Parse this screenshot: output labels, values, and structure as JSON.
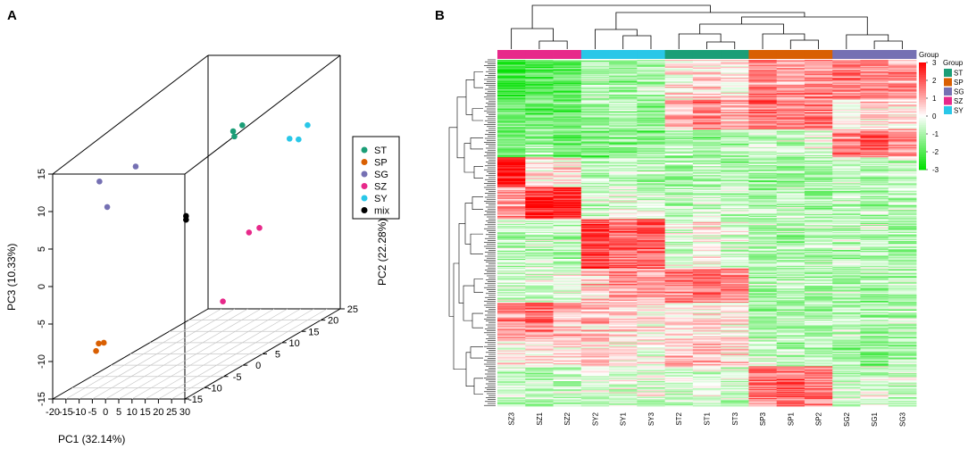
{
  "panel_labels": {
    "a": "A",
    "b": "B"
  },
  "colors": {
    "ST": "#1b9e77",
    "SP": "#d95f02",
    "SG": "#7570b3",
    "SZ": "#e7298a",
    "SY": "#29c7e8",
    "mix": "#000000",
    "heat_low": "#00e000",
    "heat_mid": "#ffffff",
    "heat_high": "#ff0000"
  },
  "chart_data": [
    {
      "type": "scatter",
      "subtype": "3d-pca",
      "xlabel": "PC1 (32.14%)",
      "ylabel": "PC2 (22.28%)",
      "zlabel": "PC3 (10.33%)",
      "x_ticks": [
        "-20",
        "-15",
        "-10",
        "-5",
        "0",
        "5",
        "10",
        "15",
        "20",
        "25",
        "30"
      ],
      "y_ticks": [
        "-15",
        "-10",
        "-5",
        "0",
        "5",
        "10",
        "15",
        "20",
        "25"
      ],
      "z_ticks": [
        "-15",
        "-10",
        "-5",
        "0",
        "5",
        "10",
        "15"
      ],
      "xlim": [
        -20,
        30
      ],
      "ylim": [
        -15,
        25
      ],
      "zlim": [
        -15,
        15
      ],
      "legend": [
        "ST",
        "SP",
        "SG",
        "SZ",
        "SY",
        "mix"
      ],
      "series": [
        {
          "name": "ST",
          "points": [
            [
              15,
              10,
              14
            ],
            [
              13,
              9,
              13.5
            ],
            [
              12,
              10,
              12.5
            ]
          ]
        },
        {
          "name": "SP",
          "points": [
            [
              -8,
              -12,
              -9.5
            ],
            [
              -7,
              -12,
              -8.5
            ],
            [
              -8,
              -10,
              -9
            ]
          ]
        },
        {
          "name": "SG",
          "points": [
            [
              -18,
              5,
              10
            ],
            [
              -17,
              -5,
              11
            ],
            [
              -17,
              -3,
              7
            ]
          ]
        },
        {
          "name": "SZ",
          "points": [
            [
              20,
              11,
              0
            ],
            [
              19,
              9,
              0
            ],
            [
              15,
              5,
              -8
            ]
          ]
        },
        {
          "name": "SY",
          "points": [
            [
              25,
              20,
              11
            ],
            [
              26,
              17,
              10
            ],
            [
              27,
              14,
              11
            ]
          ]
        },
        {
          "name": "mix",
          "points": [
            [
              4,
              3,
              4
            ],
            [
              4,
              3,
              3.5
            ]
          ]
        }
      ]
    },
    {
      "type": "heatmap",
      "title": "",
      "columns": [
        "SZ3",
        "SZ1",
        "SZ2",
        "SY2",
        "SY1",
        "SY3",
        "ST2",
        "ST1",
        "ST3",
        "SP3",
        "SP1",
        "SP2",
        "SG2",
        "SG1",
        "SG3"
      ],
      "column_groups": [
        "SZ",
        "SZ",
        "SZ",
        "SY",
        "SY",
        "SY",
        "ST",
        "ST",
        "ST",
        "SP",
        "SP",
        "SP",
        "SG",
        "SG",
        "SG"
      ],
      "annotation_title": "Group",
      "annotation_legend_title": "Group",
      "annotation_legend": [
        "ST",
        "SP",
        "SG",
        "SZ",
        "SY"
      ],
      "color_scale_ticks": [
        "3",
        "2",
        "1",
        "0",
        "-1",
        "-2",
        "-3"
      ],
      "zlim": [
        -3,
        3
      ],
      "row_blocks": [
        {
          "rows": 40,
          "values": [
            -2.2,
            -2,
            -2,
            -1,
            -1.2,
            -0.8,
            0.2,
            0.4,
            0.2,
            1.5,
            1.2,
            1.4,
            1.6,
            1.4,
            1.2
          ]
        },
        {
          "rows": 30,
          "values": [
            -1.5,
            -1.8,
            -1.6,
            -1,
            -1,
            -1.2,
            0.8,
            1.4,
            0.9,
            1.8,
            1.6,
            1.7,
            0.3,
            0.5,
            0.4
          ]
        },
        {
          "rows": 28,
          "values": [
            -1.4,
            -1.2,
            -1.5,
            -1.6,
            -1.4,
            -1.3,
            -1,
            -1.2,
            -0.8,
            -0.5,
            -0.6,
            -0.4,
            1.4,
            1.8,
            1.2
          ]
        },
        {
          "rows": 30,
          "values": [
            2.8,
            0.4,
            0.3,
            -0.8,
            -0.6,
            -0.8,
            -1,
            -0.8,
            -0.9,
            -1,
            -1.1,
            -1,
            -0.6,
            -0.8,
            -0.7
          ]
        },
        {
          "rows": 32,
          "values": [
            1.2,
            2.4,
            2.6,
            -0.6,
            -0.4,
            -0.6,
            -0.8,
            -0.6,
            -0.7,
            -1,
            -0.8,
            -1,
            -0.9,
            -1,
            -0.8
          ]
        },
        {
          "rows": 50,
          "values": [
            -0.8,
            -0.6,
            -0.7,
            2.4,
            1.8,
            2.0,
            -0.3,
            0.2,
            -0.4,
            -0.8,
            -0.9,
            -0.7,
            -0.8,
            -0.7,
            -0.9
          ]
        },
        {
          "rows": 34,
          "values": [
            -0.5,
            -0.3,
            -0.4,
            0.6,
            1.2,
            1.0,
            1.4,
            1.6,
            1.5,
            -1,
            -0.8,
            -0.9,
            -0.8,
            -1,
            -0.9
          ]
        },
        {
          "rows": 36,
          "values": [
            1.2,
            1.4,
            0.9,
            0.6,
            0.4,
            0.2,
            0.2,
            0.4,
            0.3,
            -1,
            -0.9,
            -1,
            -0.8,
            -0.9,
            -0.8
          ]
        },
        {
          "rows": 28,
          "values": [
            0.2,
            0.3,
            0.4,
            0.6,
            0.2,
            0.1,
            0.8,
            0.9,
            0.6,
            -0.6,
            -0.8,
            -0.7,
            -1.2,
            -1.4,
            -1.1
          ]
        },
        {
          "rows": 40,
          "values": [
            -0.6,
            -0.8,
            -0.7,
            -0.4,
            -0.5,
            -0.3,
            -0.6,
            -0.3,
            -0.5,
            1.5,
            1.8,
            1.6,
            -0.6,
            -0.4,
            -0.5
          ]
        }
      ]
    }
  ]
}
